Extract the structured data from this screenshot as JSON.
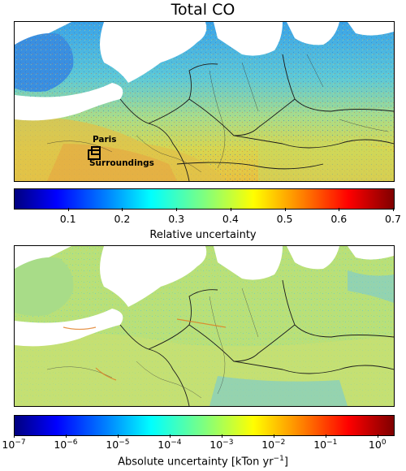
{
  "title": "Total CO",
  "panel_top": {
    "annotations": {
      "paris": "Paris",
      "surroundings": "Surroundings"
    },
    "colorbar": {
      "colormap": "jet",
      "scale": "linear",
      "range": [
        0.0,
        0.7
      ],
      "ticks": [
        "0.1",
        "0.2",
        "0.3",
        "0.4",
        "0.5",
        "0.6",
        "0.7"
      ],
      "tick_values": [
        0.1,
        0.2,
        0.3,
        0.4,
        0.5,
        0.6,
        0.7
      ],
      "label": "Relative uncertainty"
    }
  },
  "panel_bottom": {
    "colorbar": {
      "colormap": "jet",
      "scale": "log",
      "range": [
        1e-07,
        2
      ],
      "ticks": [
        "10",
        "10",
        "10",
        "10",
        "10",
        "10",
        "10",
        "10"
      ],
      "tick_exponents": [
        "−7",
        "−6",
        "−5",
        "−4",
        "−3",
        "−2",
        "−1",
        "0"
      ],
      "tick_values": [
        1e-07,
        1e-06,
        1e-05,
        0.0001,
        0.001,
        0.01,
        0.1,
        1
      ],
      "label": "Absolute uncertainty [kTon yr",
      "label_exponent": "−1",
      "label_suffix": "]"
    }
  },
  "colors": {
    "sea": "#ffffff",
    "border": "#000000"
  }
}
